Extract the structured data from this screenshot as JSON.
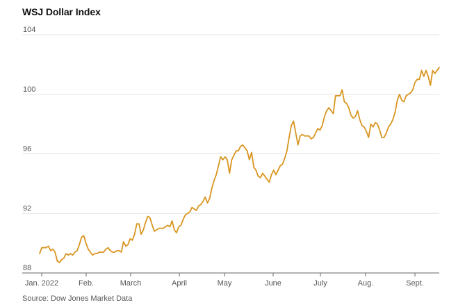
{
  "chart_data": {
    "type": "line",
    "title": "WSJ Dollar Index",
    "source": "Source: Dow Jones Market Data",
    "xlabel": "",
    "ylabel": "",
    "ylim": [
      88,
      104
    ],
    "y_ticks": [
      "104",
      "100",
      "96",
      "92",
      "88"
    ],
    "x_ticks": [
      "Jan. 2022",
      "Feb.",
      "March",
      "April",
      "May",
      "June",
      "July",
      "Aug.",
      "Sept."
    ],
    "grid": "horizontal",
    "line_color": "#d9951f",
    "series": [
      {
        "values": [
          89.3,
          89.7,
          89.7,
          89.7,
          89.8,
          89.5,
          89.6,
          89.4,
          88.8,
          88.7,
          88.9,
          89.0,
          89.3,
          89.2,
          89.3,
          89.2,
          89.4,
          89.5,
          89.9,
          90.4,
          90.5,
          90.0,
          89.6,
          89.4,
          89.2,
          89.3,
          89.3,
          89.4,
          89.4,
          89.4,
          89.6,
          89.7,
          89.5,
          89.4,
          89.4,
          89.5,
          89.5,
          89.4,
          90.1,
          89.8,
          89.9,
          90.3,
          90.2,
          90.6,
          91.3,
          91.3,
          90.6,
          90.9,
          91.4,
          91.8,
          91.7,
          91.2,
          90.8,
          90.9,
          91.0,
          91.0,
          91.0,
          91.1,
          91.2,
          91.1,
          91.5,
          90.9,
          90.7,
          91.1,
          91.2,
          91.6,
          91.9,
          92.0,
          92.1,
          92.4,
          92.3,
          92.2,
          92.5,
          92.6,
          92.8,
          93.1,
          92.7,
          93.0,
          93.7,
          94.2,
          94.6,
          95.2,
          95.8,
          95.6,
          95.8,
          95.6,
          94.7,
          95.6,
          95.9,
          96.2,
          96.2,
          96.5,
          96.6,
          96.4,
          96.2,
          95.6,
          96.1,
          95.1,
          94.9,
          94.5,
          94.4,
          94.7,
          94.5,
          94.3,
          94.1,
          94.6,
          94.9,
          94.6,
          94.9,
          95.2,
          95.3,
          95.7,
          96.2,
          97.1,
          97.9,
          98.2,
          97.4,
          96.6,
          97.2,
          97.3,
          97.2,
          97.2,
          97.2,
          97.0,
          97.1,
          97.4,
          97.7,
          97.6,
          97.9,
          98.5,
          98.9,
          99.1,
          98.9,
          98.7,
          99.9,
          99.9,
          99.9,
          100.3,
          99.5,
          99.4,
          99.1,
          98.6,
          98.4,
          98.5,
          98.9,
          98.3,
          97.9,
          97.8,
          97.5,
          97.1,
          98.0,
          97.8,
          98.1,
          98.0,
          97.6,
          97.1,
          97.1,
          97.4,
          97.8,
          98.0,
          98.3,
          98.8,
          99.6,
          100.0,
          99.6,
          99.5,
          99.9,
          100.0,
          100.1,
          100.3,
          100.8,
          101.0,
          101.0,
          101.6,
          101.2,
          101.6,
          101.2,
          100.6,
          101.6,
          101.4,
          101.6,
          101.8
        ]
      }
    ]
  }
}
